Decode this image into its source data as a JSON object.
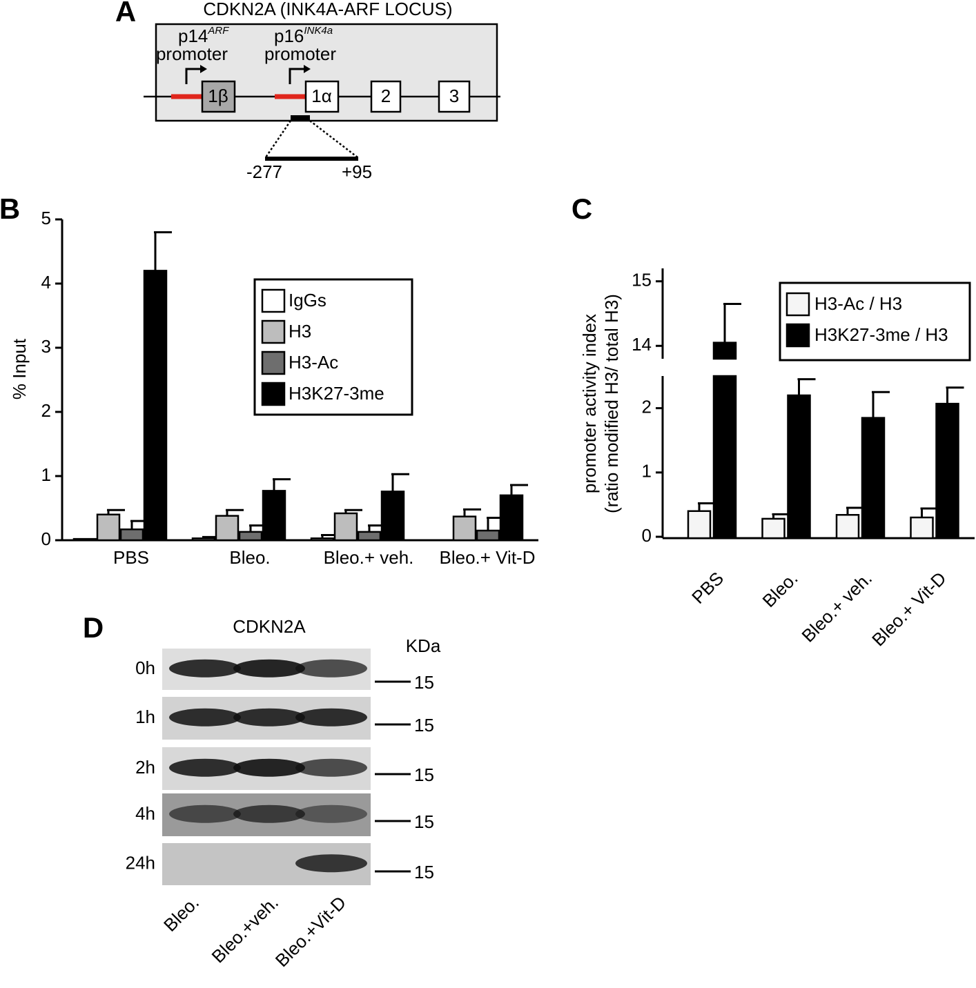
{
  "panel_labels": [
    "A",
    "B",
    "C",
    "D"
  ],
  "panel_a": {
    "title": "CDKN2A (INK4A-ARF LOCUS)",
    "promoters": [
      {
        "name": "p14",
        "superscript": "ARF",
        "label": "promoter"
      },
      {
        "name": "p16",
        "superscript": "INK4a",
        "label": "promoter"
      }
    ],
    "exons": [
      "1β",
      "1α",
      "2",
      "3"
    ],
    "region": [
      "-277",
      "+95"
    ]
  },
  "chart_data": [
    {
      "type": "bar",
      "ylabel": "% Input",
      "categories": [
        "PBS",
        "Bleo.",
        "Bleo.+ veh.",
        "Bleo.+ Vit-D"
      ],
      "series": [
        {
          "name": "IgGs",
          "color": "#ffffff",
          "values": [
            0.02,
            0.03,
            0.03,
            0
          ],
          "errors": [
            null,
            0.02,
            0.05,
            null
          ]
        },
        {
          "name": "H3",
          "color": "#bdbdbd",
          "values": [
            0.4,
            0.38,
            0.42,
            0.37
          ],
          "errors": [
            0.07,
            0.09,
            0.05,
            0.11
          ]
        },
        {
          "name": "H3-Ac",
          "color": "#6e6e6e",
          "values": [
            0.17,
            0.13,
            0.13,
            0.15
          ],
          "errors": [
            0.13,
            0.1,
            0.1,
            0.2
          ]
        },
        {
          "name": "H3K27-3me",
          "color": "#000000",
          "values": [
            4.2,
            0.77,
            0.76,
            0.7
          ],
          "errors": [
            0.6,
            0.18,
            0.27,
            0.16
          ]
        }
      ],
      "ylim": [
        0,
        5
      ],
      "yticks": [
        0,
        1,
        2,
        3,
        4,
        5
      ],
      "grid": false,
      "legend": "center"
    },
    {
      "type": "bar",
      "ylabel": [
        "promoter activity index",
        "(ratio modified H3/ total H3)"
      ],
      "categories": [
        "PBS",
        "Bleo.",
        "Bleo.+ veh.",
        "Bleo.+ Vit-D"
      ],
      "series": [
        {
          "name": "H3-Ac / H3",
          "color": "#f5f5f5",
          "values": [
            0.4,
            0.28,
            0.34,
            0.3
          ],
          "errors": [
            0.12,
            0.07,
            0.11,
            0.14
          ]
        },
        {
          "name": "H3K27-3me / H3",
          "color": "#000000",
          "values": [
            14.05,
            2.2,
            1.85,
            2.07
          ],
          "errors": [
            0.6,
            0.25,
            0.4,
            0.25
          ]
        }
      ],
      "ylim": [
        0,
        15.2
      ],
      "axis_break": [
        2.5,
        13.8
      ],
      "yticks": [
        0,
        1,
        2,
        14,
        15
      ],
      "grid": false,
      "legend": "upper right"
    }
  ],
  "panel_d": {
    "title": "CDKN2A",
    "unit": "KDa",
    "rows": [
      {
        "label": "0h",
        "marker": "15"
      },
      {
        "label": "1h",
        "marker": "15"
      },
      {
        "label": "2h",
        "marker": "15"
      },
      {
        "label": "4h",
        "marker": "15"
      },
      {
        "label": "24h",
        "marker": "15"
      }
    ],
    "lanes": [
      "Bleo.",
      "Bleo.+veh.",
      "Bleo.+Vit-D"
    ]
  }
}
